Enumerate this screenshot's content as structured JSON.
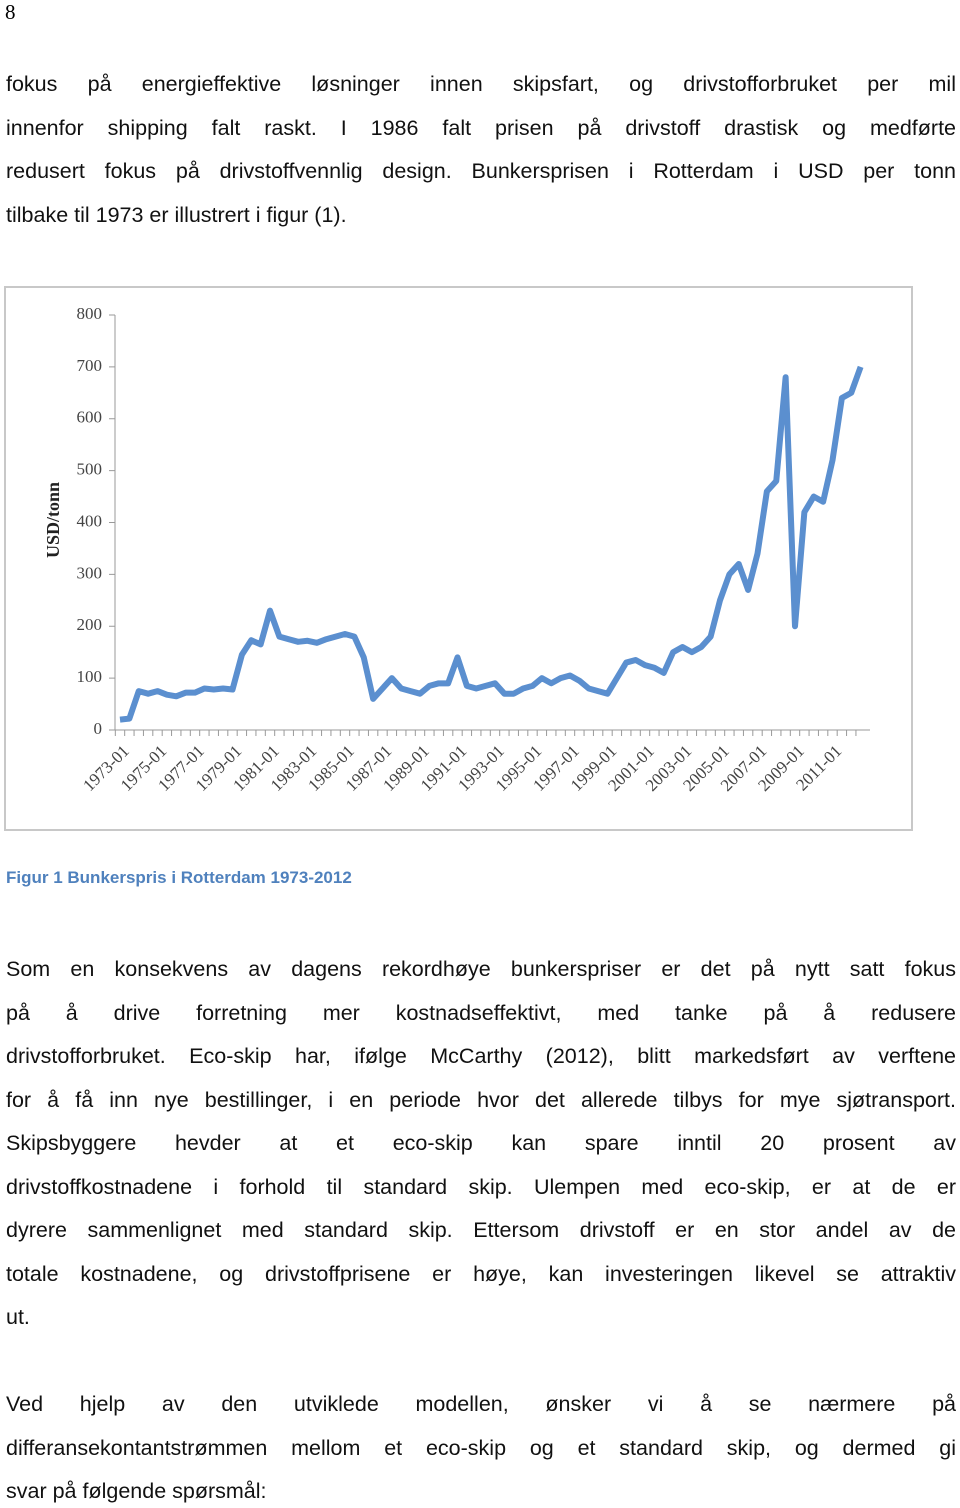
{
  "page_number": "8",
  "paragraphs_top": [
    {
      "lines": [
        "fokus på energieffektive løsninger innen skipsfart, og drivstofforbruket per mil",
        "innenfor shipping falt raskt. I 1986 falt prisen på drivstoff drastisk og medførte",
        "redusert fokus på drivstoffvennlig design. Bunkersprisen i Rotterdam i USD per tonn",
        "tilbake til 1973 er illustrert i figur (1)."
      ]
    }
  ],
  "chart_data": {
    "type": "line",
    "y_label": "USD/tonn",
    "categories": [
      "1973-01",
      null,
      null,
      null,
      "1975-01",
      null,
      null,
      null,
      "1977-01",
      null,
      null,
      null,
      "1979-01",
      null,
      null,
      null,
      "1981-01",
      null,
      null,
      null,
      "1983-01",
      null,
      null,
      null,
      "1985-01",
      null,
      null,
      null,
      "1987-01",
      null,
      null,
      null,
      "1989-01",
      null,
      null,
      null,
      "1991-01",
      null,
      null,
      null,
      "1993-01",
      null,
      null,
      null,
      "1995-01",
      null,
      null,
      null,
      "1997-01",
      null,
      null,
      null,
      "1999-01",
      null,
      null,
      null,
      "2001-01",
      null,
      null,
      null,
      "2003-01",
      null,
      null,
      null,
      "2005-01",
      null,
      null,
      null,
      "2007-01",
      null,
      null,
      null,
      "2009-01",
      null,
      null,
      null,
      "2011-01",
      null,
      null,
      null
    ],
    "series": [
      {
        "name": "Bunkerspris",
        "color": "#5b8fcf",
        "values": [
          20,
          22,
          75,
          70,
          75,
          68,
          65,
          72,
          72,
          80,
          78,
          80,
          78,
          145,
          173,
          165,
          230,
          180,
          175,
          170,
          172,
          168,
          175,
          180,
          185,
          180,
          140,
          60,
          80,
          100,
          80,
          75,
          70,
          85,
          90,
          90,
          140,
          85,
          80,
          85,
          90,
          70,
          70,
          80,
          85,
          100,
          90,
          100,
          105,
          95,
          80,
          75,
          70,
          100,
          130,
          135,
          125,
          120,
          110,
          150,
          160,
          150,
          160,
          180,
          250,
          300,
          320,
          270,
          340,
          460,
          480,
          680,
          200,
          420,
          450,
          440,
          520,
          640,
          650,
          700
        ]
      }
    ],
    "ylim": [
      0,
      800
    ],
    "yticks": [
      0,
      100,
      200,
      300,
      400,
      500,
      600,
      700,
      800
    ]
  },
  "caption": "Figur 1 Bunkerspris i Rotterdam 1973-2012",
  "paragraphs_bottom": [
    {
      "lines": [
        "Som en konsekvens av dagens rekordhøye bunkerspriser er det  på nytt satt fokus",
        "på å drive forretning mer kostnadseffektivt, med tanke på å redusere",
        "drivstofforbruket. Eco-skip har, ifølge McCarthy (2012), blitt markedsført av verftene",
        "for å få inn nye bestillinger, i en periode hvor det allerede tilbys for mye sjøtransport.",
        "Skipsbyggere hevder at et eco-skip kan spare inntil 20 prosent av",
        "drivstoffkostnadene i forhold til standard skip. Ulempen med eco-skip, er at de er",
        "dyrere sammenlignet med standard skip. Ettersom drivstoff er en stor andel av de",
        "totale kostnadene, og drivstoffprisene er høye, kan investeringen likevel se attraktiv",
        "ut."
      ]
    },
    {
      "lines": [
        "Ved hjelp av den utviklede modellen, ønsker vi å se nærmere på",
        "differansekontantstrømmen mellom et eco-skip og et standard skip, og dermed gi",
        "svar på følgende spørsmål:"
      ]
    }
  ]
}
